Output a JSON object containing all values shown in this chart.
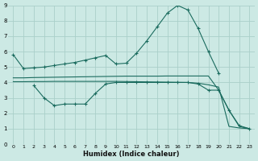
{
  "xlabel": "Humidex (Indice chaleur)",
  "xlim": [
    -0.5,
    23.5
  ],
  "ylim": [
    0,
    9
  ],
  "bg_color": "#cce9e4",
  "grid_color": "#aacfc9",
  "line_color": "#1a6b5e",
  "line1_x": [
    0,
    1,
    2,
    3,
    4,
    5,
    6,
    7,
    8,
    9,
    10,
    11,
    12,
    13,
    14,
    15,
    16,
    17,
    18,
    19,
    20
  ],
  "line1_y": [
    5.8,
    4.9,
    4.95,
    5.0,
    5.1,
    5.2,
    5.3,
    5.45,
    5.6,
    5.75,
    5.2,
    5.25,
    5.9,
    6.7,
    7.6,
    8.5,
    9.0,
    8.7,
    7.5,
    6.0,
    4.6
  ],
  "line2_x": [
    0,
    1,
    2,
    3,
    4,
    5,
    6,
    7,
    8,
    9,
    10,
    11,
    12,
    13,
    14,
    15,
    16,
    17,
    18,
    19,
    20,
    21,
    22,
    23
  ],
  "line2_y": [
    4.3,
    4.3,
    4.32,
    4.33,
    4.34,
    4.35,
    4.36,
    4.37,
    4.38,
    4.39,
    4.4,
    4.41,
    4.41,
    4.41,
    4.41,
    4.42,
    4.42,
    4.42,
    4.42,
    4.42,
    3.5,
    2.2,
    1.15,
    1.0
  ],
  "line3_x": [
    2,
    3,
    4,
    5,
    6,
    7,
    8,
    9,
    10,
    11,
    12,
    13,
    14,
    15,
    16,
    17,
    18,
    19,
    20,
    21,
    22,
    23
  ],
  "line3_y": [
    3.8,
    3.0,
    2.5,
    2.6,
    2.6,
    2.6,
    3.3,
    3.9,
    4.0,
    4.0,
    4.0,
    4.0,
    4.0,
    4.0,
    4.0,
    4.0,
    3.9,
    3.5,
    3.5,
    2.2,
    1.2,
    1.0
  ],
  "line4_x": [
    0,
    1,
    2,
    3,
    4,
    5,
    6,
    7,
    8,
    9,
    10,
    11,
    12,
    13,
    14,
    15,
    16,
    17,
    18,
    19,
    20,
    21,
    22,
    23
  ],
  "line4_y": [
    4.05,
    4.05,
    4.06,
    4.06,
    4.07,
    4.07,
    4.07,
    4.07,
    4.07,
    4.07,
    4.07,
    4.06,
    4.05,
    4.04,
    4.03,
    4.02,
    4.01,
    4.0,
    3.95,
    3.85,
    3.7,
    1.15,
    1.05,
    1.0
  ]
}
